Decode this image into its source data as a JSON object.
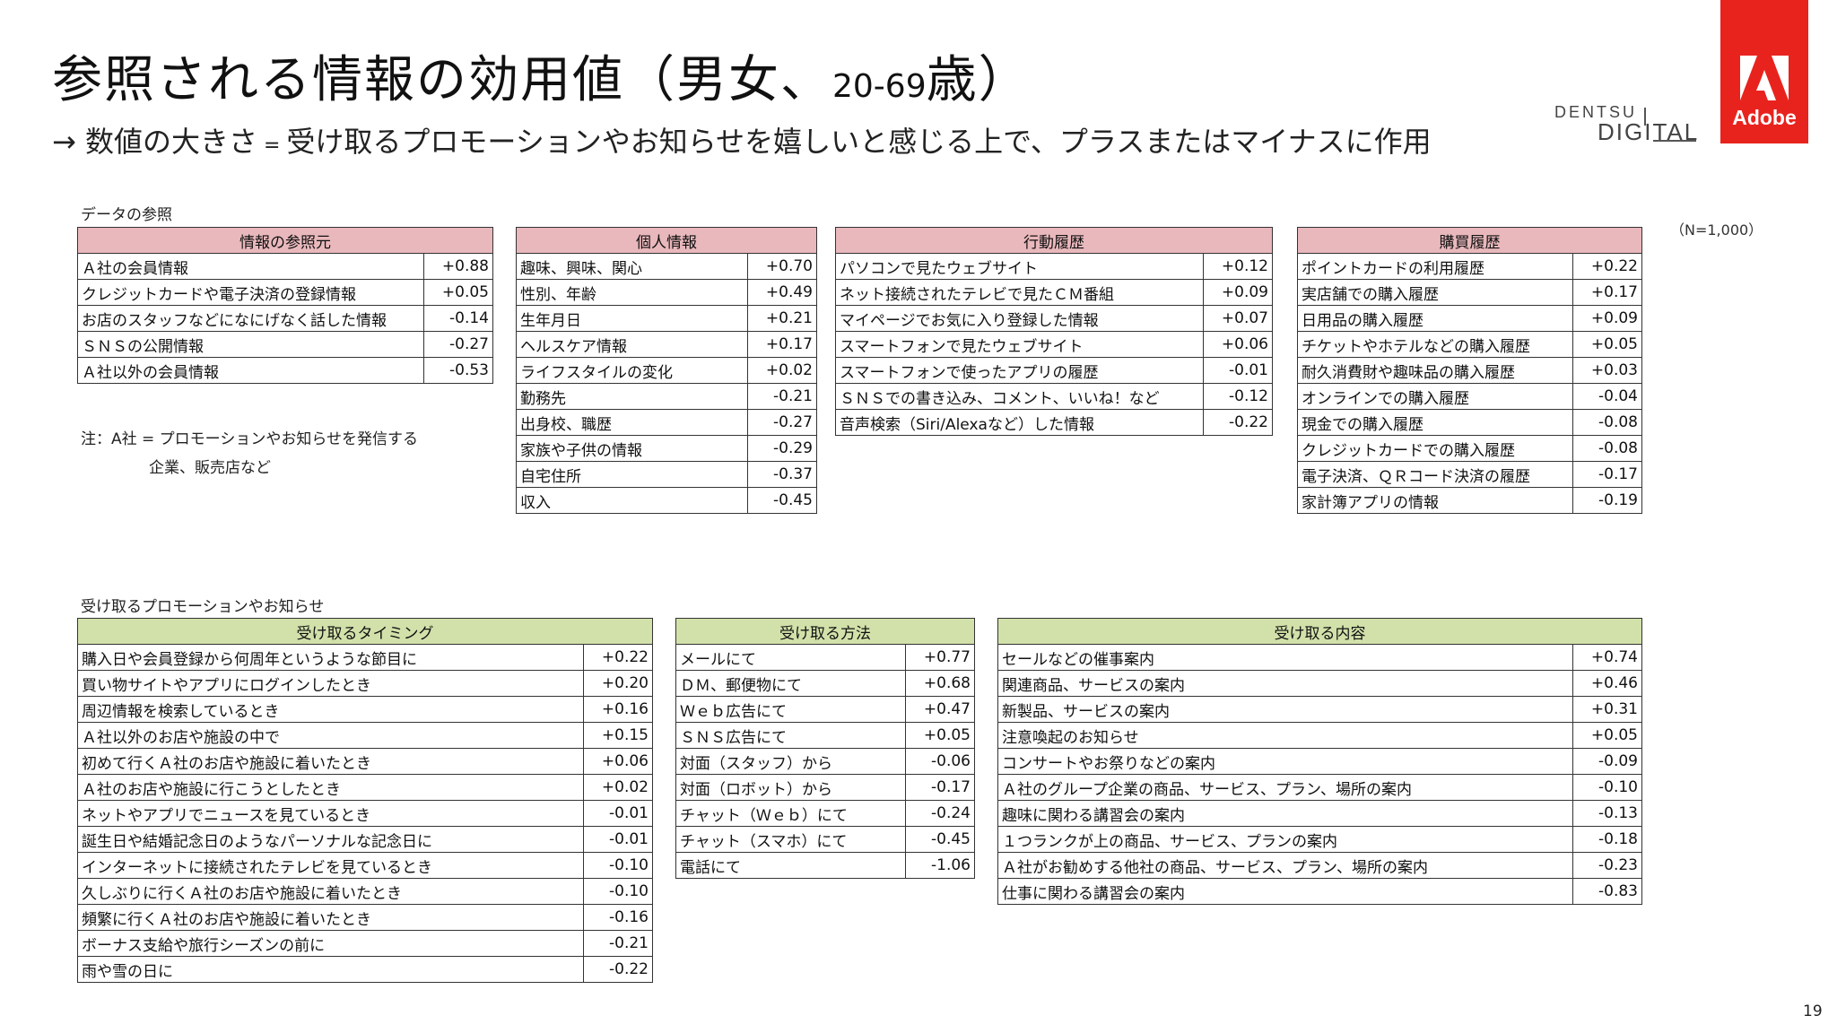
{
  "header": {
    "title_main": "参照される情報の効用値（男女、",
    "title_age": "20-69",
    "title_end": "歳）",
    "subtitle_arrow": "→",
    "subtitle_a": " 数値の大きさ",
    "subtitle_eq": " = ",
    "subtitle_b": "受け取るプロモーションやお知らせを嬉しいと感じる上で、プラスまたはマイナスに作用",
    "dentsu_top": "DENTSU",
    "dentsu_bottom": "DIGITAL",
    "adobe_label": "Adobe"
  },
  "colors": {
    "pink_header": "#e9b8bc",
    "green_header": "#d2e1aa",
    "adobe_red": "#e8231e"
  },
  "section1_label": "データの参照",
  "n_label": "（N=1,000）",
  "note": {
    "line1": "注：A社 = プロモーションやお知らせを発信する",
    "line2": "企業、販売店など"
  },
  "section2_label": "受け取るプロモーションやお知らせ",
  "tables": {
    "source": {
      "header": "情報の参照元",
      "rows": [
        {
          "label": "Ａ社の会員情報",
          "value": "+0.88"
        },
        {
          "label": "クレジットカードや電子決済の登録情報",
          "value": "+0.05"
        },
        {
          "label": "お店のスタッフなどになにげなく話した情報",
          "value": "-0.14"
        },
        {
          "label": "ＳＮＳの公開情報",
          "value": "-0.27"
        },
        {
          "label": "Ａ社以外の会員情報",
          "value": "-0.53"
        }
      ]
    },
    "personal": {
      "header": "個人情報",
      "rows": [
        {
          "label": "趣味、興味、関心",
          "value": "+0.70"
        },
        {
          "label": "性別、年齢",
          "value": "+0.49"
        },
        {
          "label": "生年月日",
          "value": "+0.21"
        },
        {
          "label": "ヘルスケア情報",
          "value": "+0.17"
        },
        {
          "label": "ライフスタイルの変化",
          "value": "+0.02"
        },
        {
          "label": "勤務先",
          "value": "-0.21"
        },
        {
          "label": "出身校、職歴",
          "value": "-0.27"
        },
        {
          "label": "家族や子供の情報",
          "value": "-0.29"
        },
        {
          "label": "自宅住所",
          "value": "-0.37"
        },
        {
          "label": "収入",
          "value": "-0.45"
        }
      ]
    },
    "behavior": {
      "header": "行動履歴",
      "rows": [
        {
          "label": "パソコンで見たウェブサイト",
          "value": "+0.12"
        },
        {
          "label": "ネット接続されたテレビで見たＣＭ番組",
          "value": "+0.09"
        },
        {
          "label": "マイページでお気に入り登録した情報",
          "value": "+0.07"
        },
        {
          "label": "スマートフォンで見たウェブサイト",
          "value": "+0.06"
        },
        {
          "label": "スマートフォンで使ったアプリの履歴",
          "value": "-0.01"
        },
        {
          "label": "ＳＮＳでの書き込み、コメント、いいね！など",
          "value": "-0.12"
        },
        {
          "label": "音声検索（Siri/Alexaなど）した情報",
          "value": "-0.22"
        }
      ]
    },
    "purchase": {
      "header": "購買履歴",
      "rows": [
        {
          "label": "ポイントカードの利用履歴",
          "value": "+0.22"
        },
        {
          "label": "実店舗での購入履歴",
          "value": "+0.17"
        },
        {
          "label": "日用品の購入履歴",
          "value": "+0.09"
        },
        {
          "label": "チケットやホテルなどの購入履歴",
          "value": "+0.05"
        },
        {
          "label": "耐久消費財や趣味品の購入履歴",
          "value": "+0.03"
        },
        {
          "label": "オンラインでの購入履歴",
          "value": "-0.04"
        },
        {
          "label": "現金での購入履歴",
          "value": "-0.08"
        },
        {
          "label": "クレジットカードでの購入履歴",
          "value": "-0.08"
        },
        {
          "label": "電子決済、ＱＲコード決済の履歴",
          "value": "-0.17"
        },
        {
          "label": "家計簿アプリの情報",
          "value": "-0.19"
        }
      ]
    },
    "timing": {
      "header": "受け取るタイミング",
      "rows": [
        {
          "label": "購入日や会員登録から何周年というような節目に",
          "value": "+0.22"
        },
        {
          "label": "買い物サイトやアプリにログインしたとき",
          "value": "+0.20"
        },
        {
          "label": "周辺情報を検索しているとき",
          "value": "+0.16"
        },
        {
          "label": "Ａ社以外のお店や施設の中で",
          "value": "+0.15"
        },
        {
          "label": "初めて行くＡ社のお店や施設に着いたとき",
          "value": "+0.06"
        },
        {
          "label": "Ａ社のお店や施設に行こうとしたとき",
          "value": "+0.02"
        },
        {
          "label": "ネットやアプリでニュースを見ているとき",
          "value": "-0.01"
        },
        {
          "label": "誕生日や結婚記念日のようなパーソナルな記念日に",
          "value": "-0.01"
        },
        {
          "label": "インターネットに接続されたテレビを見ているとき",
          "value": "-0.10"
        },
        {
          "label": "久しぶりに行くＡ社のお店や施設に着いたとき",
          "value": "-0.10"
        },
        {
          "label": "頻繁に行くＡ社のお店や施設に着いたとき",
          "value": "-0.16"
        },
        {
          "label": "ボーナス支給や旅行シーズンの前に",
          "value": "-0.21"
        },
        {
          "label": "雨や雪の日に",
          "value": "-0.22"
        }
      ]
    },
    "method": {
      "header": "受け取る方法",
      "rows": [
        {
          "label": "メールにて",
          "value": "+0.77"
        },
        {
          "label": "ＤＭ、郵便物にて",
          "value": "+0.68"
        },
        {
          "label": "Ｗｅｂ広告にて",
          "value": "+0.47"
        },
        {
          "label": "ＳＮＳ広告にて",
          "value": "+0.05"
        },
        {
          "label": "対面（スタッフ）から",
          "value": "-0.06"
        },
        {
          "label": "対面（ロボット）から",
          "value": "-0.17"
        },
        {
          "label": "チャット（Ｗｅｂ）にて",
          "value": "-0.24"
        },
        {
          "label": "チャット（スマホ）にて",
          "value": "-0.45"
        },
        {
          "label": "電話にて",
          "value": "-1.06"
        }
      ]
    },
    "content": {
      "header": "受け取る内容",
      "rows": [
        {
          "label": "セールなどの催事案内",
          "value": "+0.74"
        },
        {
          "label": "関連商品、サービスの案内",
          "value": "+0.46"
        },
        {
          "label": "新製品、サービスの案内",
          "value": "+0.31"
        },
        {
          "label": "注意喚起のお知らせ",
          "value": "+0.05"
        },
        {
          "label": "コンサートやお祭りなどの案内",
          "value": "-0.09"
        },
        {
          "label": "Ａ社のグループ企業の商品、サービス、プラン、場所の案内",
          "value": "-0.10"
        },
        {
          "label": "趣味に関わる講習会の案内",
          "value": "-0.13"
        },
        {
          "label": "１つランクが上の商品、サービス、プランの案内",
          "value": "-0.18"
        },
        {
          "label": "Ａ社がお勧めする他社の商品、サービス、プラン、場所の案内",
          "value": "-0.23"
        },
        {
          "label": "仕事に関わる講習会の案内",
          "value": "-0.83"
        }
      ]
    }
  },
  "page_number": "19"
}
